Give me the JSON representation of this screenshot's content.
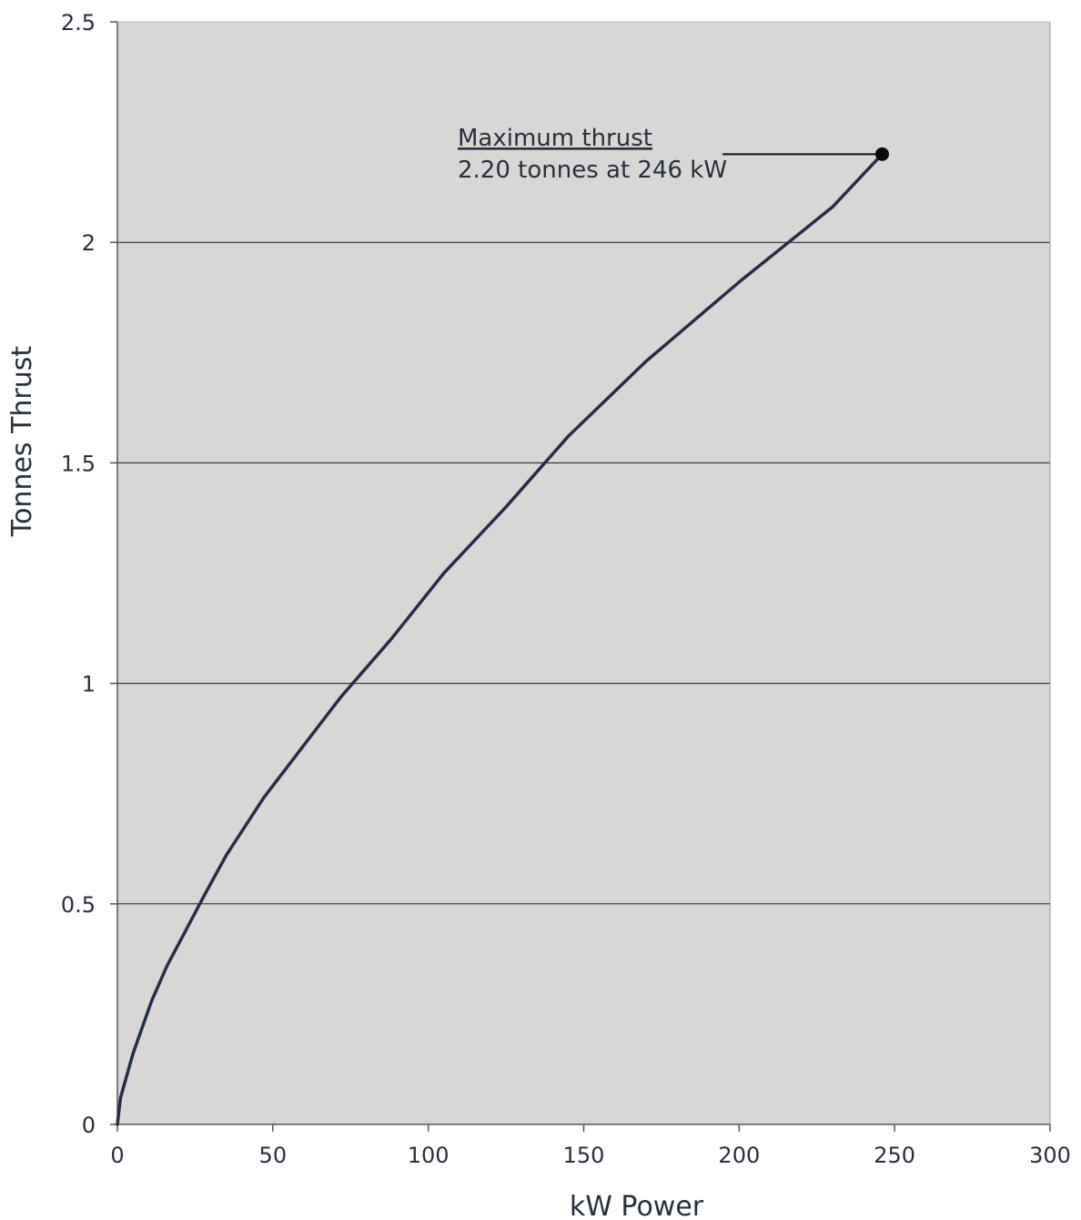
{
  "chart_data": {
    "type": "line",
    "title": "",
    "xlabel": "kW Power",
    "ylabel": "Tonnes Thrust",
    "xlim": [
      0,
      300
    ],
    "ylim": [
      0,
      2.5
    ],
    "xticks": [
      0,
      50,
      100,
      150,
      200,
      250,
      300
    ],
    "yticks": [
      0,
      0.5,
      1,
      1.5,
      2,
      2.5
    ],
    "xtick_labels": [
      "0",
      "50",
      "100",
      "150",
      "200",
      "250",
      "300"
    ],
    "ytick_labels": [
      "0",
      "0.5",
      "1",
      "1.5",
      "2",
      "2.5"
    ],
    "grid": "horizontal",
    "series": [
      {
        "x": [
          0,
          1,
          5,
          11,
          16,
          22,
          28,
          35,
          47,
          60,
          72,
          88,
          105,
          125,
          145,
          170,
          200,
          230,
          246
        ],
        "y": [
          0,
          0.06,
          0.16,
          0.28,
          0.36,
          0.44,
          0.52,
          0.61,
          0.74,
          0.86,
          0.97,
          1.1,
          1.25,
          1.4,
          1.56,
          1.73,
          1.91,
          2.08,
          2.2
        ]
      }
    ],
    "annotation": {
      "title": "Maximum thrust",
      "text": "2.20 tonnes at 246 kW",
      "point": {
        "x": 246,
        "y": 2.2
      }
    },
    "colors": {
      "plot_background": "#d9d7d6",
      "line": "#242e47",
      "text": "#26303f",
      "grid": "#1a1a1a"
    }
  }
}
